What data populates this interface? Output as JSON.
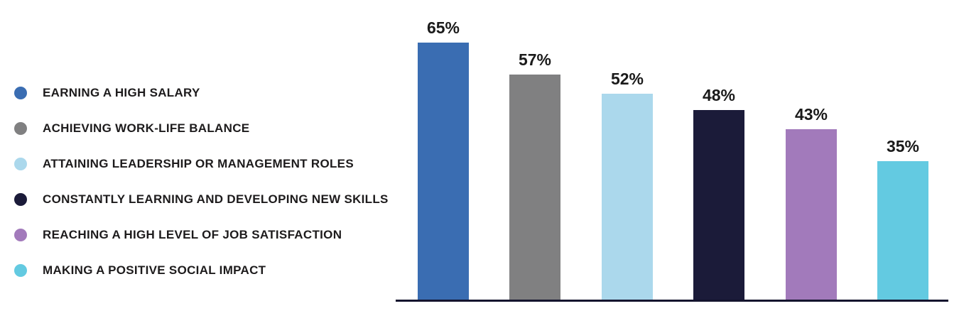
{
  "chart_data": {
    "type": "bar",
    "title": "",
    "xlabel": "",
    "ylabel": "",
    "categories": [
      "EARNING A HIGH SALARY",
      "ACHIEVING WORK-LIFE BALANCE",
      "ATTAINING LEADERSHIP OR MANAGEMENT ROLES",
      "CONSTANTLY LEARNING AND DEVELOPING NEW SKILLS",
      "REACHING A HIGH LEVEL OF JOB SATISFACTION",
      "MAKING A POSITIVE SOCIAL IMPACT"
    ],
    "values": [
      65,
      57,
      52,
      48,
      43,
      35
    ],
    "value_labels": [
      "65%",
      "57%",
      "52%",
      "48%",
      "43%",
      "35%"
    ],
    "colors": [
      "#3a6db2",
      "#808081",
      "#abd8ec",
      "#1b1b39",
      "#a27abb",
      "#63cae1"
    ],
    "ylim": [
      0,
      70
    ],
    "grid": false,
    "legend_position": "left",
    "axis_line_color": "#14142e",
    "value_label_color": "#1a1a1a",
    "legend_text_color": "#1d1b1c"
  }
}
